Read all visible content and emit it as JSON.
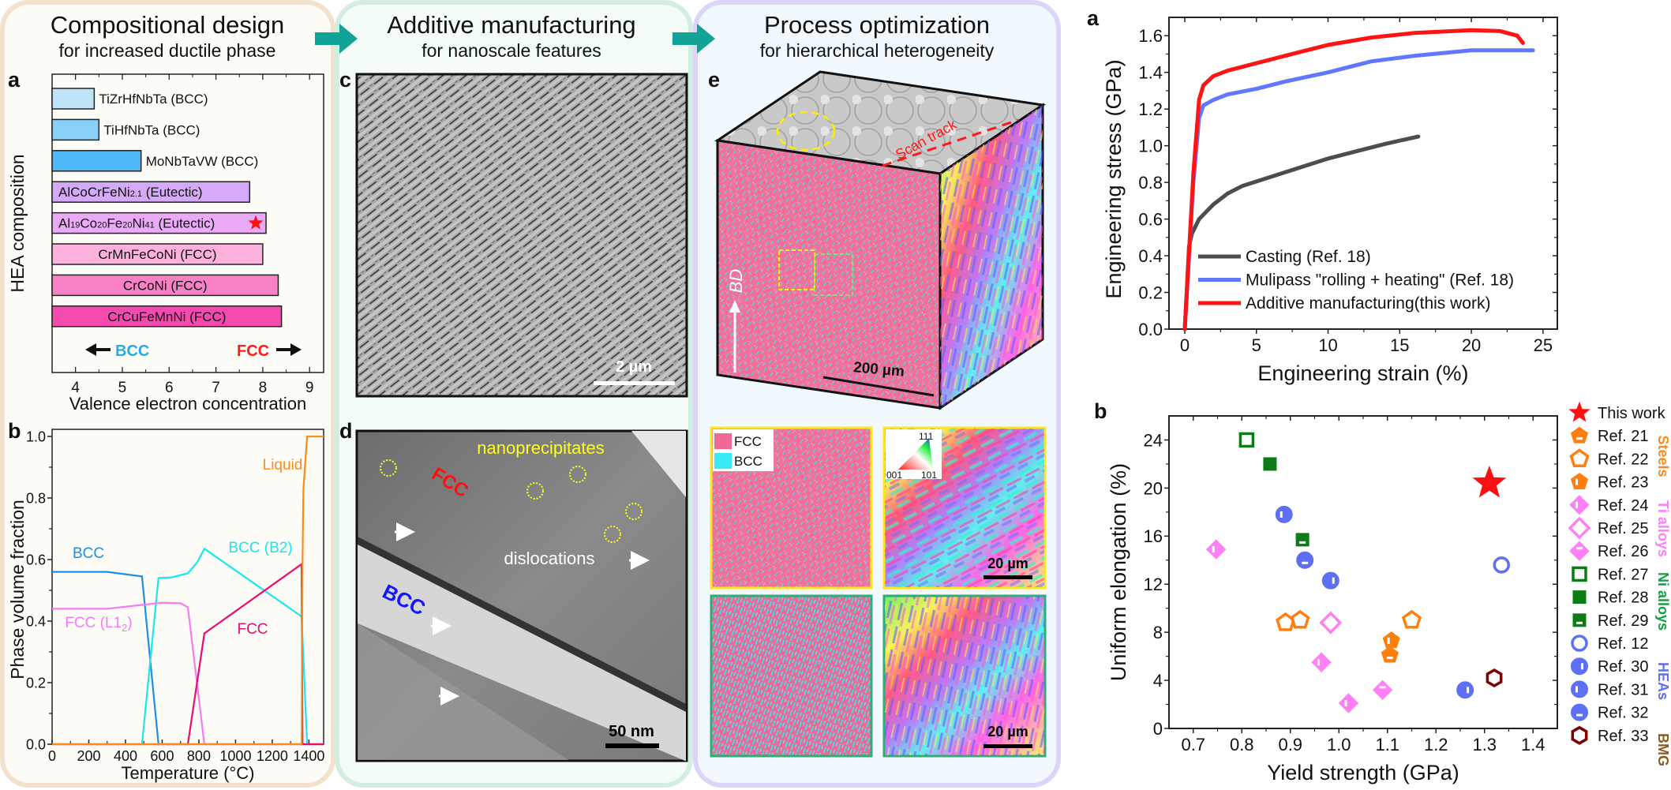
{
  "sections": [
    {
      "title": "Compositional design",
      "subtitle": "for increased ductile phase"
    },
    {
      "title": "Additive manufacturing",
      "subtitle": "for nanoscale features"
    },
    {
      "title": "Process optimization",
      "subtitle": "for hierarchical heterogeneity"
    }
  ],
  "colors": {
    "section1_bg": "#fdfcf6",
    "section1_border": "#f2e2cb",
    "section2_bg": "#f3fcf7",
    "section2_border": "#d3ede0",
    "section3_bg": "#f1f9fe",
    "section3_border": "#ddd5f7",
    "arrow": "#12a296"
  },
  "panel_labels": {
    "a": "a",
    "b": "b",
    "c": "c",
    "d": "d",
    "e": "e",
    "ra": "a",
    "rb": "b"
  },
  "micrographs": {
    "c_scale": "2 µm",
    "d_scale": "50 nm",
    "d_nanoprecipitates": "nanoprecipitates",
    "d_fcc": "FCC",
    "d_bcc": "BCC",
    "d_dislocations": "dislocations",
    "e_scan_track": "Scan track",
    "e_bd": "BD",
    "e_scale": "200 µm",
    "phase_legend": [
      "FCC",
      "BCC"
    ],
    "ipf_key": [
      "111",
      "001",
      "101"
    ],
    "ipf_scale": "20 µm"
  },
  "chart_data": [
    {
      "id": "vec",
      "type": "bar",
      "orientation": "horizontal",
      "xlabel": "Valence electron concentration",
      "ylabel": "HEA composition",
      "xlim": [
        3.5,
        9.3
      ],
      "xticks": [
        4,
        5,
        6,
        7,
        8,
        9
      ],
      "annotations": {
        "bcc": "BCC",
        "fcc": "FCC"
      },
      "bars": [
        {
          "label": [
            {
              "t": "TiZrHfNbTa (BCC)"
            }
          ],
          "value": 4.4,
          "color": "#bfe4fa",
          "pos": "outside"
        },
        {
          "label": [
            {
              "t": "TiHfNbTa (BCC)"
            }
          ],
          "value": 4.5,
          "color": "#88d0f8",
          "pos": "outside"
        },
        {
          "label": [
            {
              "t": "MoNbTaVW (BCC)"
            }
          ],
          "value": 5.4,
          "color": "#4dbaf7",
          "pos": "outside"
        },
        {
          "label": [
            {
              "t": "AlCoCrFeNi"
            },
            {
              "t": "2.1",
              "sub": true
            },
            {
              "t": " (Eutectic)"
            }
          ],
          "value": 7.72,
          "color": "#d4a9f8",
          "pos": "left"
        },
        {
          "label": [
            {
              "t": "Al"
            },
            {
              "t": "19",
              "sub": true
            },
            {
              "t": "Co"
            },
            {
              "t": "20",
              "sub": true
            },
            {
              "t": "Fe"
            },
            {
              "t": "20",
              "sub": true
            },
            {
              "t": "Ni"
            },
            {
              "t": "41",
              "sub": true
            },
            {
              "t": " (Eutectic)"
            }
          ],
          "value": 8.07,
          "color": "#eaaaf7",
          "pos": "left",
          "star": true
        },
        {
          "label": [
            {
              "t": "CrMnFeCoNi (FCC)"
            }
          ],
          "value": 8.0,
          "color": "#fcb2dc",
          "pos": "center"
        },
        {
          "label": [
            {
              "t": "CrCoNi (FCC)"
            }
          ],
          "value": 8.33,
          "color": "#f880c5",
          "pos": "center"
        },
        {
          "label": [
            {
              "t": "CrCuFeMnNi (FCC)"
            }
          ],
          "value": 8.4,
          "color": "#f44aaf",
          "pos": "center"
        }
      ]
    },
    {
      "id": "phase",
      "type": "line",
      "xlabel": "Temperature (°C)",
      "ylabel": "Phase volume fraction",
      "xlim": [
        0,
        1480
      ],
      "ylim": [
        0,
        1.023
      ],
      "xticks": [
        0,
        200,
        400,
        600,
        800,
        1000,
        1200,
        1400
      ],
      "yticks": [
        0.0,
        0.2,
        0.4,
        0.6,
        0.8,
        1.0
      ],
      "series": [
        {
          "name": "BCC",
          "color": "#1d8fe3",
          "points": [
            [
              0,
              0.56
            ],
            [
              300,
              0.56
            ],
            [
              490,
              0.545
            ],
            [
              580,
              0
            ],
            [
              1480,
              0
            ]
          ]
        },
        {
          "name": "BCC (B2)",
          "color": "#19e6f0",
          "points": [
            [
              0,
              0
            ],
            [
              490,
              0
            ],
            [
              580,
              0.54
            ],
            [
              650,
              0.542
            ],
            [
              740,
              0.555
            ],
            [
              790,
              0.59
            ],
            [
              830,
              0.635
            ],
            [
              1360,
              0.415
            ],
            [
              1390,
              0
            ],
            [
              1480,
              0
            ]
          ]
        },
        {
          "name": "FCC (L1",
          "name_sub": "2",
          "name_end": ")",
          "color": "#f77cf2",
          "points": [
            [
              0,
              0.44
            ],
            [
              300,
              0.44
            ],
            [
              450,
              0.45
            ],
            [
              600,
              0.46
            ],
            [
              700,
              0.458
            ],
            [
              740,
              0.445
            ],
            [
              830,
              0
            ],
            [
              1480,
              0
            ]
          ]
        },
        {
          "name": "FCC",
          "color": "#ec0b6e",
          "points": [
            [
              0,
              0
            ],
            [
              740,
              0
            ],
            [
              830,
              0.36
            ],
            [
              1360,
              0.585
            ],
            [
              1365,
              0
            ],
            [
              1480,
              0
            ]
          ]
        },
        {
          "name": "Liquid",
          "color": "#ff8a1c",
          "points": [
            [
              0,
              0
            ],
            [
              1360,
              0
            ],
            [
              1365,
              0.6
            ],
            [
              1370,
              0.83
            ],
            [
              1390,
              1.0
            ],
            [
              1480,
              1.0
            ]
          ]
        }
      ]
    },
    {
      "id": "stress",
      "type": "line",
      "xlabel": "Engineering strain (%)",
      "ylabel": "Engineering stress (GPa)",
      "xlim": [
        -1.1,
        26
      ],
      "ylim": [
        0,
        1.7
      ],
      "xticks": [
        0,
        5,
        10,
        15,
        20,
        25
      ],
      "yticks": [
        0.0,
        0.2,
        0.4,
        0.6,
        0.8,
        1.0,
        1.2,
        1.4,
        1.6
      ],
      "legend_position": "bottom-right",
      "series": [
        {
          "name": "Casting (Ref. 18)",
          "color": "#4d4d4d",
          "points": [
            [
              0,
              0
            ],
            [
              0.3,
              0.45
            ],
            [
              0.5,
              0.52
            ],
            [
              1,
              0.6
            ],
            [
              2,
              0.68
            ],
            [
              3,
              0.74
            ],
            [
              4,
              0.78
            ],
            [
              6,
              0.83
            ],
            [
              8,
              0.88
            ],
            [
              10,
              0.93
            ],
            [
              12,
              0.97
            ],
            [
              14,
              1.01
            ],
            [
              16.3,
              1.05
            ]
          ]
        },
        {
          "name": "Mulipass \"rolling + heating\" (Ref. 18)",
          "color": "#5f78ff",
          "points": [
            [
              0,
              0
            ],
            [
              0.6,
              0.8
            ],
            [
              1.0,
              1.15
            ],
            [
              1.3,
              1.22
            ],
            [
              2,
              1.25
            ],
            [
              3,
              1.28
            ],
            [
              5,
              1.31
            ],
            [
              7,
              1.35
            ],
            [
              10,
              1.4
            ],
            [
              13,
              1.46
            ],
            [
              16,
              1.49
            ],
            [
              20,
              1.52
            ],
            [
              24.3,
              1.52
            ]
          ]
        },
        {
          "name": "Additive manufacturing(this work)",
          "color": "#ff1414",
          "points": [
            [
              0,
              0
            ],
            [
              0.6,
              0.85
            ],
            [
              1.0,
              1.25
            ],
            [
              1.3,
              1.33
            ],
            [
              2,
              1.38
            ],
            [
              3,
              1.41
            ],
            [
              5,
              1.45
            ],
            [
              8,
              1.51
            ],
            [
              10,
              1.55
            ],
            [
              13,
              1.59
            ],
            [
              16,
              1.615
            ],
            [
              20,
              1.63
            ],
            [
              22,
              1.625
            ],
            [
              23.2,
              1.6
            ],
            [
              23.6,
              1.56
            ]
          ]
        }
      ]
    },
    {
      "id": "ashby",
      "type": "scatter",
      "xlabel": "Yield strength (GPa)",
      "ylabel": "Uniform elongation (%)",
      "xlim": [
        0.65,
        1.45
      ],
      "ylim": [
        0,
        26
      ],
      "xticks": [
        0.7,
        0.8,
        0.9,
        1.0,
        1.1,
        1.2,
        1.3,
        1.4
      ],
      "yticks": [
        0,
        4,
        8,
        12,
        16,
        20,
        24
      ],
      "legend_position": "right",
      "legend": [
        {
          "name": "This work",
          "shape": "star",
          "fill": "filled",
          "color": "#ff0f0f"
        },
        {
          "name": "Ref. 21",
          "shape": "pentagon",
          "fill": "half-bottom",
          "color": "#ff7f0e"
        },
        {
          "name": "Ref. 22",
          "shape": "pentagon",
          "fill": "open",
          "color": "#ff7f0e"
        },
        {
          "name": "Ref. 23",
          "shape": "pentagon",
          "fill": "half-left",
          "color": "#ff7f0e"
        },
        {
          "name": "Ref. 24",
          "shape": "diamond",
          "fill": "half-left",
          "color": "#ff7ff5"
        },
        {
          "name": "Ref. 25",
          "shape": "diamond",
          "fill": "open",
          "color": "#ff7ff5"
        },
        {
          "name": "Ref. 26",
          "shape": "diamond",
          "fill": "half-top",
          "color": "#ff7ff5"
        },
        {
          "name": "Ref. 27",
          "shape": "square",
          "fill": "open",
          "color": "#0b7d14"
        },
        {
          "name": "Ref. 28",
          "shape": "square",
          "fill": "filled",
          "color": "#0b7d14"
        },
        {
          "name": "Ref. 29",
          "shape": "square",
          "fill": "half-bottom",
          "color": "#0b7d14"
        },
        {
          "name": "Ref. 12",
          "shape": "circle",
          "fill": "open",
          "color": "#5d6ff5"
        },
        {
          "name": "Ref. 30",
          "shape": "circle",
          "fill": "half-right",
          "color": "#5d6ff5"
        },
        {
          "name": "Ref. 31",
          "shape": "circle",
          "fill": "half-left",
          "color": "#5d6ff5"
        },
        {
          "name": "Ref. 32",
          "shape": "circle",
          "fill": "half-bottom",
          "color": "#5d6ff5"
        },
        {
          "name": "Ref. 33",
          "shape": "hexagon",
          "fill": "open",
          "color": "#7f0000"
        }
      ],
      "groups": [
        {
          "name": "Steels",
          "color": "#ff8a1c"
        },
        {
          "name": "Ti alloys",
          "color": "#ff7ff5"
        },
        {
          "name": "Ni alloys",
          "color": "#10a040"
        },
        {
          "name": "HEAs",
          "color": "#5d6ff5"
        },
        {
          "name": "BMG",
          "color": "#8a5a20"
        }
      ],
      "points": [
        {
          "ref": "This work",
          "x": 1.31,
          "y": 20.4
        },
        {
          "ref": "Ref. 27",
          "x": 0.81,
          "y": 24.0
        },
        {
          "ref": "Ref. 28",
          "x": 0.858,
          "y": 22.0
        },
        {
          "ref": "Ref. 31",
          "x": 0.887,
          "y": 17.8
        },
        {
          "ref": "Ref. 29",
          "x": 0.925,
          "y": 15.7
        },
        {
          "ref": "Ref. 32",
          "x": 0.93,
          "y": 14.0
        },
        {
          "ref": "Ref. 30",
          "x": 0.983,
          "y": 12.3
        },
        {
          "ref": "Ref. 24",
          "x": 0.747,
          "y": 14.9
        },
        {
          "ref": "Ref. 22",
          "x": 0.89,
          "y": 8.8
        },
        {
          "ref": "Ref. 22",
          "x": 0.92,
          "y": 9.0
        },
        {
          "ref": "Ref. 25",
          "x": 0.983,
          "y": 8.8
        },
        {
          "ref": "Ref. 24",
          "x": 0.964,
          "y": 5.5
        },
        {
          "ref": "Ref. 24",
          "x": 1.02,
          "y": 2.1
        },
        {
          "ref": "Ref. 26",
          "x": 1.09,
          "y": 3.2
        },
        {
          "ref": "Ref. 22",
          "x": 1.15,
          "y": 9.0
        },
        {
          "ref": "Ref. 23",
          "x": 1.108,
          "y": 7.3
        },
        {
          "ref": "Ref. 21",
          "x": 1.105,
          "y": 6.1
        },
        {
          "ref": "Ref. 12",
          "x": 1.335,
          "y": 13.6
        },
        {
          "ref": "Ref. 30",
          "x": 1.26,
          "y": 3.2
        },
        {
          "ref": "Ref. 33",
          "x": 1.32,
          "y": 4.2
        }
      ]
    }
  ]
}
